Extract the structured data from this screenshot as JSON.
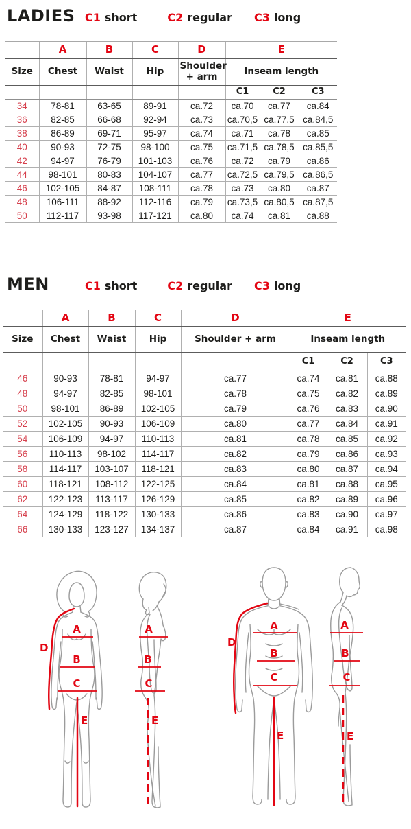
{
  "colors": {
    "accent_red": "#e30613",
    "size_red": "#d6404d",
    "grid_gray": "#b0b0b0",
    "header_line": "#5c5c5c",
    "figure_gray": "#9b9b9b"
  },
  "ladies": {
    "title": "LADIES",
    "legend": [
      {
        "code": "C1",
        "label": "short"
      },
      {
        "code": "C2",
        "label": "regular"
      },
      {
        "code": "C3",
        "label": "long"
      }
    ],
    "table": {
      "letters": [
        "A",
        "B",
        "C",
        "D",
        "E"
      ],
      "col_headers": [
        "Size",
        "Chest",
        "Waist",
        "Hip",
        "Shoulder + arm",
        "Inseam length"
      ],
      "sub_headers": [
        "C1",
        "C2",
        "C3"
      ],
      "rows": [
        [
          "34",
          "78-81",
          "63-65",
          "89-91",
          "ca.72",
          "ca.70",
          "ca.77",
          "ca.84"
        ],
        [
          "36",
          "82-85",
          "66-68",
          "92-94",
          "ca.73",
          "ca.70,5",
          "ca.77,5",
          "ca.84,5"
        ],
        [
          "38",
          "86-89",
          "69-71",
          "95-97",
          "ca.74",
          "ca.71",
          "ca.78",
          "ca.85"
        ],
        [
          "40",
          "90-93",
          "72-75",
          "98-100",
          "ca.75",
          "ca.71,5",
          "ca.78,5",
          "ca.85,5"
        ],
        [
          "42",
          "94-97",
          "76-79",
          "101-103",
          "ca.76",
          "ca.72",
          "ca.79",
          "ca.86"
        ],
        [
          "44",
          "98-101",
          "80-83",
          "104-107",
          "ca.77",
          "ca.72,5",
          "ca.79,5",
          "ca.86,5"
        ],
        [
          "46",
          "102-105",
          "84-87",
          "108-111",
          "ca.78",
          "ca.73",
          "ca.80",
          "ca.87"
        ],
        [
          "48",
          "106-111",
          "88-92",
          "112-116",
          "ca.79",
          "ca.73,5",
          "ca.80,5",
          "ca.87,5"
        ],
        [
          "50",
          "112-117",
          "93-98",
          "117-121",
          "ca.80",
          "ca.74",
          "ca.81",
          "ca.88"
        ]
      ]
    }
  },
  "men": {
    "title": "MEN",
    "legend": [
      {
        "code": "C1",
        "label": "short"
      },
      {
        "code": "C2",
        "label": "regular"
      },
      {
        "code": "C3",
        "label": "long"
      }
    ],
    "table": {
      "letters": [
        "A",
        "B",
        "C",
        "D",
        "E"
      ],
      "col_headers": [
        "Size",
        "Chest",
        "Waist",
        "Hip",
        "Shoulder + arm",
        "Inseam length"
      ],
      "sub_headers": [
        "C1",
        "C2",
        "C3"
      ],
      "rows": [
        [
          "46",
          "90-93",
          "78-81",
          "94-97",
          "ca.77",
          "ca.74",
          "ca.81",
          "ca.88"
        ],
        [
          "48",
          "94-97",
          "82-85",
          "98-101",
          "ca.78",
          "ca.75",
          "ca.82",
          "ca.89"
        ],
        [
          "50",
          "98-101",
          "86-89",
          "102-105",
          "ca.79",
          "ca.76",
          "ca.83",
          "ca.90"
        ],
        [
          "52",
          "102-105",
          "90-93",
          "106-109",
          "ca.80",
          "ca.77",
          "ca.84",
          "ca.91"
        ],
        [
          "54",
          "106-109",
          "94-97",
          "110-113",
          "ca.81",
          "ca.78",
          "ca.85",
          "ca.92"
        ],
        [
          "56",
          "110-113",
          "98-102",
          "114-117",
          "ca.82",
          "ca.79",
          "ca.86",
          "ca.93"
        ],
        [
          "58",
          "114-117",
          "103-107",
          "118-121",
          "ca.83",
          "ca.80",
          "ca.87",
          "ca.94"
        ],
        [
          "60",
          "118-121",
          "108-112",
          "122-125",
          "ca.84",
          "ca.81",
          "ca.88",
          "ca.95"
        ],
        [
          "62",
          "122-123",
          "113-117",
          "126-129",
          "ca.85",
          "ca.82",
          "ca.89",
          "ca.96"
        ],
        [
          "64",
          "124-129",
          "118-122",
          "130-133",
          "ca.86",
          "ca.83",
          "ca.90",
          "ca.97"
        ],
        [
          "66",
          "130-133",
          "123-127",
          "134-137",
          "ca.87",
          "ca.84",
          "ca.91",
          "ca.98"
        ]
      ]
    }
  },
  "figures": {
    "woman_front": {
      "a": "A",
      "b": "B",
      "c": "C",
      "d": "D",
      "e": "E"
    },
    "woman_side": {
      "a": "A",
      "b": "B",
      "c": "C",
      "e": "E"
    },
    "man_front": {
      "a": "A",
      "b": "B",
      "c": "C",
      "d": "D",
      "e": "E"
    },
    "man_side": {
      "a": "A",
      "b": "B",
      "c": "C",
      "e": "E"
    }
  }
}
